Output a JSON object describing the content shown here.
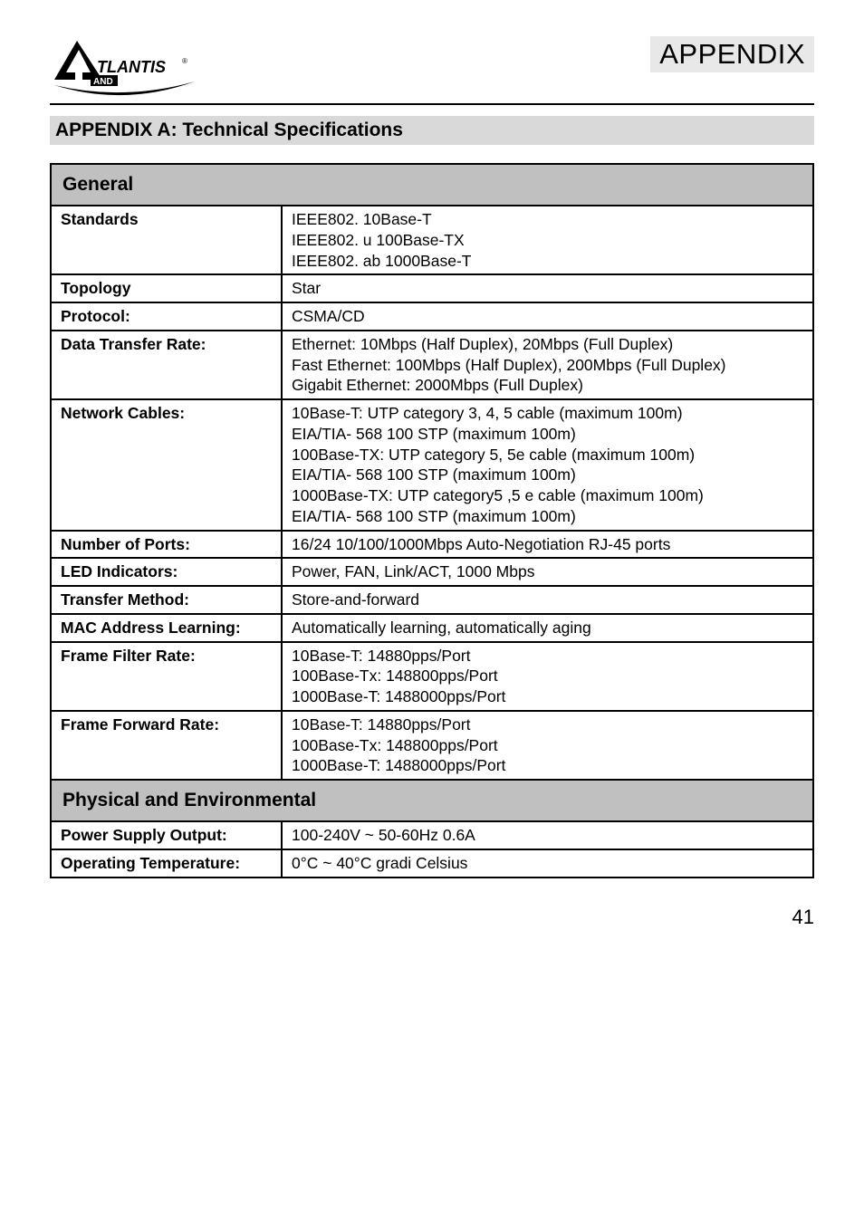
{
  "header": {
    "brand_name": "TLANTIS",
    "brand_sub": "AND",
    "appendix_label": "APPENDIX"
  },
  "section_title": "APPENDIX A: Technical Specifications",
  "tables": {
    "general": {
      "header": "General",
      "rows": [
        {
          "label": "Standards",
          "value": "IEEE802. 10Base-T\nIEEE802. u 100Base-TX\nIEEE802. ab 1000Base-T"
        },
        {
          "label": "Topology",
          "value": "Star"
        },
        {
          "label": "Protocol:",
          "value": "CSMA/CD"
        },
        {
          "label": "Data Transfer Rate:",
          "value": "Ethernet: 10Mbps (Half Duplex), 20Mbps (Full Duplex)\nFast Ethernet: 100Mbps (Half Duplex), 200Mbps (Full Duplex)\nGigabit Ethernet: 2000Mbps (Full Duplex)"
        },
        {
          "label": "Network Cables:",
          "value": "10Base-T: UTP category 3, 4, 5 cable (maximum 100m)\nEIA/TIA- 568 100 STP (maximum 100m)\n100Base-TX: UTP category 5, 5e cable (maximum 100m)\nEIA/TIA- 568 100 STP (maximum 100m)\n1000Base-TX: UTP category5 ,5 e cable (maximum 100m)\nEIA/TIA- 568 100 STP (maximum 100m)"
        },
        {
          "label": "Number  of Ports:",
          "value": "16/24 10/100/1000Mbps Auto-Negotiation RJ-45 ports"
        },
        {
          "label": "LED Indicators:",
          "value": "Power, FAN, Link/ACT, 1000 Mbps"
        },
        {
          "label": "Transfer Method:",
          "value": "Store-and-forward"
        },
        {
          "label": "MAC Address Learning:",
          "value": "Automatically learning, automatically aging"
        },
        {
          "label": "Frame Filter  Rate:",
          "value": "10Base-T: 14880pps/Port\n100Base-Tx: 148800pps/Port\n1000Base-T: 1488000pps/Port"
        },
        {
          "label": "Frame Forward  Rate:",
          "value": "10Base-T: 14880pps/Port\n100Base-Tx: 148800pps/Port\n1000Base-T: 1488000pps/Port"
        }
      ]
    },
    "physical": {
      "header": "Physical and Environmental",
      "rows": [
        {
          "label": "Power Supply Output:",
          "value": "100-240V ~ 50-60Hz 0.6A"
        },
        {
          "label": "Operating Temperature:",
          "value": "0°C ~ 40°C gradi Celsius"
        }
      ]
    }
  },
  "page_number": "41",
  "style": {
    "page_bg": "#ffffff",
    "header_bg": "#e8e8e8",
    "section_bg": "#d9d9d9",
    "group_header_bg": "#c0c0c0",
    "border_color": "#000000",
    "font_body": 17.5,
    "font_group_header": 21,
    "font_section": 21,
    "font_appendix": 31,
    "font_pagenum": 22
  }
}
